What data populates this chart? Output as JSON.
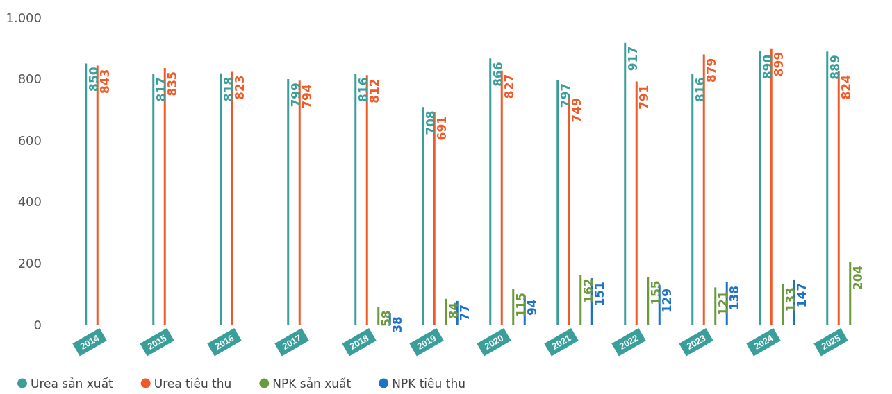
{
  "chart_data": {
    "type": "bar",
    "categories": [
      "2014",
      "2015",
      "2016",
      "2017",
      "2018",
      "2019",
      "2020",
      "2021",
      "2022",
      "2023",
      "2024",
      "2025"
    ],
    "series": [
      {
        "name": "Urea sản xuất",
        "color": "#3a9e9a",
        "values": [
          850,
          817,
          818,
          799,
          816,
          708,
          866,
          797,
          917,
          816,
          890,
          889
        ]
      },
      {
        "name": "Urea tiêu thu",
        "color": "#f05a28",
        "values": [
          843,
          835,
          823,
          794,
          812,
          691,
          827,
          749,
          791,
          879,
          899,
          824
        ]
      },
      {
        "name": "NPK sản xuất",
        "color": "#6a9a3c",
        "values": [
          null,
          null,
          null,
          null,
          58,
          84,
          115,
          162,
          155,
          121,
          133,
          204
        ]
      },
      {
        "name": "NPK tiêu thu",
        "color": "#1f72c4",
        "values": [
          null,
          null,
          null,
          null,
          38,
          77,
          94,
          151,
          129,
          138,
          147,
          null
        ]
      }
    ],
    "ylim": [
      0,
      1000
    ],
    "yticks": [
      0,
      200,
      400,
      600,
      800,
      {
        "value": 1000,
        "label": "1.000"
      }
    ],
    "grid": false,
    "legend": "bottom left",
    "data_labels": true
  }
}
